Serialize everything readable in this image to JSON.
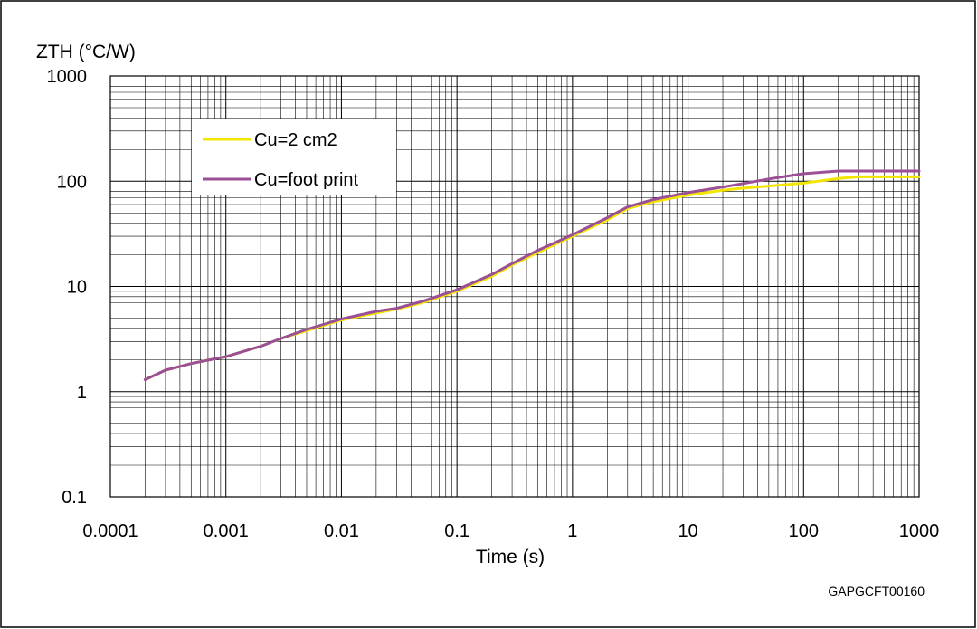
{
  "chart_data": {
    "type": "line",
    "title": "",
    "xlabel": "Time (s)",
    "ylabel": "ZTH (°C/W)",
    "x_scale": "log",
    "y_scale": "log",
    "xlim": [
      0.0001,
      1000
    ],
    "ylim": [
      0.1,
      1000
    ],
    "x_ticks": [
      {
        "value": 0.0001,
        "label": "0.0001"
      },
      {
        "value": 0.001,
        "label": "0.001"
      },
      {
        "value": 0.01,
        "label": "0.01"
      },
      {
        "value": 0.1,
        "label": "0.1"
      },
      {
        "value": 1,
        "label": "1"
      },
      {
        "value": 10,
        "label": "10"
      },
      {
        "value": 100,
        "label": "100"
      },
      {
        "value": 1000,
        "label": "1000"
      }
    ],
    "y_ticks": [
      {
        "value": 0.1,
        "label": "0.1"
      },
      {
        "value": 1,
        "label": "1"
      },
      {
        "value": 10,
        "label": "10"
      },
      {
        "value": 100,
        "label": "100"
      },
      {
        "value": 1000,
        "label": "1000"
      }
    ],
    "grid": true,
    "legend_position": "top-left",
    "series": [
      {
        "name": "Cu=2 cm2",
        "color": "#f2e600",
        "x": [
          0.0002,
          0.0003,
          0.0005,
          0.0008,
          0.001,
          0.002,
          0.003,
          0.005,
          0.01,
          0.02,
          0.03,
          0.05,
          0.1,
          0.2,
          0.3,
          0.5,
          1,
          2,
          3,
          5,
          10,
          20,
          30,
          50,
          100,
          200,
          300,
          500,
          1000
        ],
        "y": [
          1.3,
          1.6,
          1.85,
          2.05,
          2.15,
          2.7,
          3.2,
          3.8,
          4.8,
          5.6,
          6.1,
          7.0,
          9.0,
          12.5,
          16.0,
          21.0,
          30.0,
          43.0,
          55.0,
          64.0,
          74.0,
          82.0,
          86.0,
          90.0,
          96.0,
          106.0,
          110.0,
          110.0,
          110.0
        ]
      },
      {
        "name": "Cu=foot print",
        "color": "#9b4f96",
        "x": [
          0.0002,
          0.0003,
          0.0005,
          0.0008,
          0.001,
          0.002,
          0.003,
          0.005,
          0.01,
          0.02,
          0.03,
          0.05,
          0.1,
          0.2,
          0.3,
          0.5,
          1,
          2,
          3,
          5,
          10,
          20,
          30,
          50,
          100,
          200,
          300,
          500,
          1000
        ],
        "y": [
          1.3,
          1.6,
          1.85,
          2.05,
          2.15,
          2.7,
          3.2,
          3.9,
          4.9,
          5.8,
          6.2,
          7.2,
          9.3,
          13.0,
          16.5,
          22.0,
          31.0,
          45.0,
          57.0,
          67.0,
          78.0,
          88.0,
          95.0,
          105.0,
          118.0,
          125.0,
          125.0,
          125.0,
          125.0
        ]
      }
    ]
  },
  "figure_code": "GAPGCFT00160"
}
